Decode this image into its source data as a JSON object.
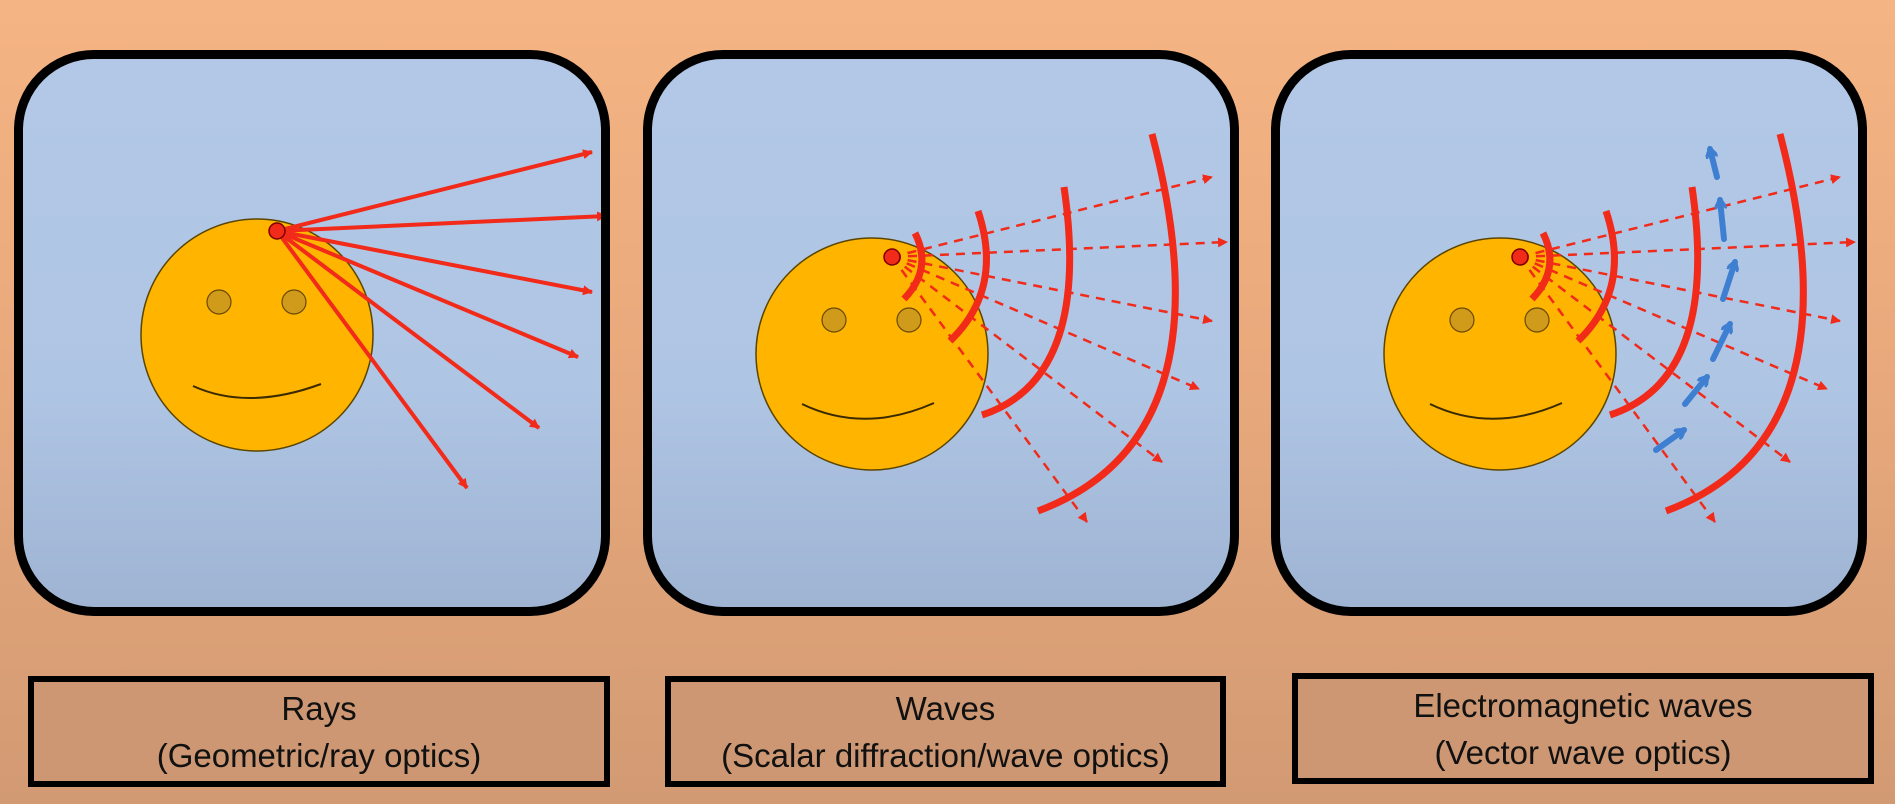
{
  "panels": [
    {
      "id": "rays",
      "title": "Rays",
      "subtitle": "(Geometric/ray optics)"
    },
    {
      "id": "waves",
      "title": "Waves",
      "subtitle": "(Scalar diffraction/wave optics)"
    },
    {
      "id": "em",
      "title": "Electromagnetic waves",
      "subtitle": "(Vector wave optics)"
    }
  ],
  "colors": {
    "background": "#f2b184",
    "panel_fill": "#b0c6e5",
    "panel_border": "#000000",
    "face": "#ffb400",
    "ray": "#f12a1a",
    "field_vector": "#3f7fd1",
    "label_fill": "#cc9772"
  }
}
